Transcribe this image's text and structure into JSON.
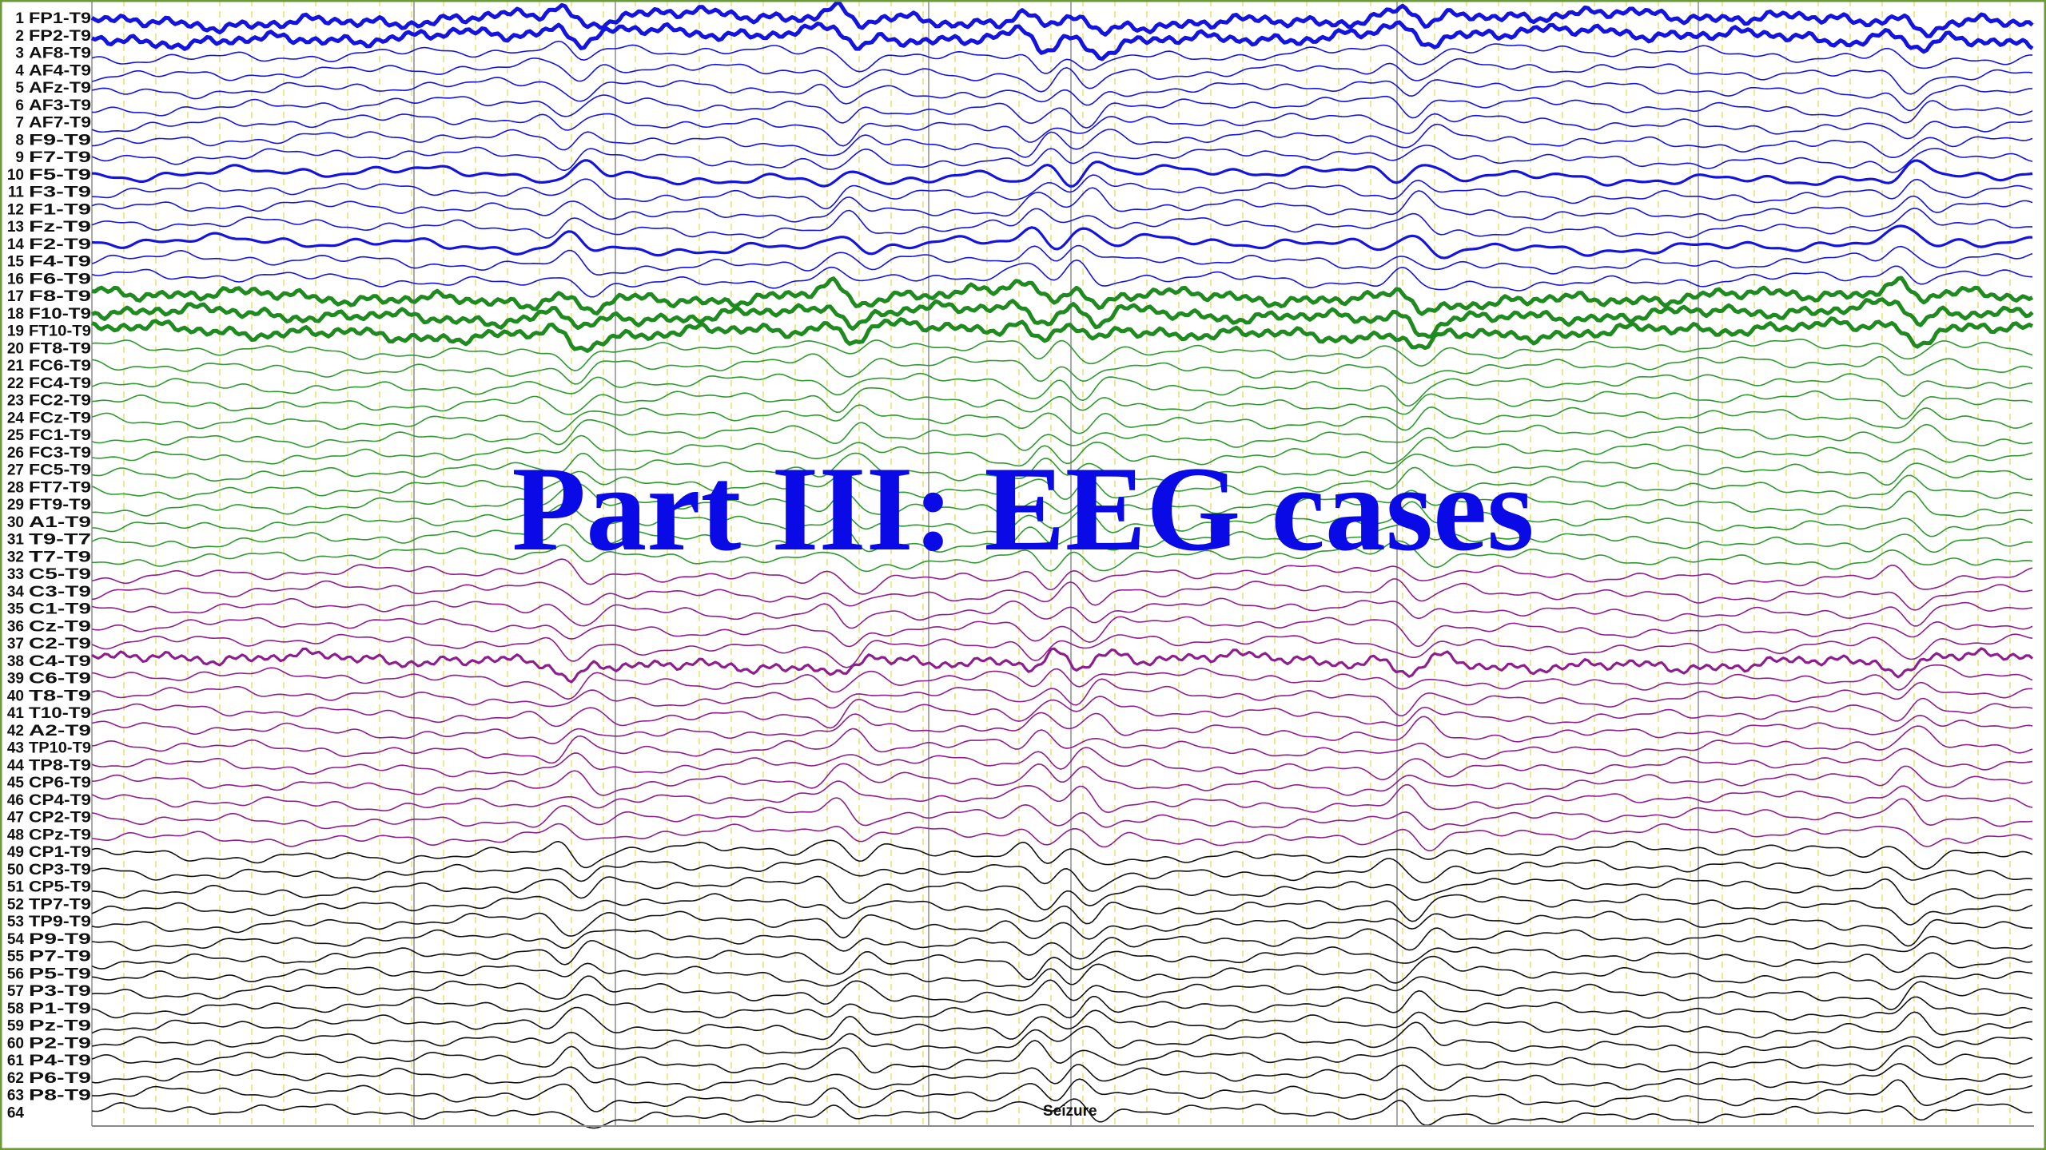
{
  "title": "Part III: EEG cases",
  "channels": [
    {
      "number": "1",
      "label": "FP1-T9"
    },
    {
      "number": "2",
      "label": "FP2-T9"
    },
    {
      "number": "3",
      "label": "AF8-T9"
    },
    {
      "number": "4",
      "label": "AF4-T9"
    },
    {
      "number": "5",
      "label": "AFz-T9"
    },
    {
      "number": "6",
      "label": "AF3-T9"
    },
    {
      "number": "7",
      "label": "AF7-T9"
    },
    {
      "number": "8",
      "label": "F9-T9"
    },
    {
      "number": "9",
      "label": "F7-T9"
    },
    {
      "number": "10",
      "label": "F5-T9"
    },
    {
      "number": "11",
      "label": "F3-T9"
    },
    {
      "number": "12",
      "label": "F1-T9"
    },
    {
      "number": "13",
      "label": "Fz-T9"
    },
    {
      "number": "14",
      "label": "F2-T9"
    },
    {
      "number": "15",
      "label": "F4-T9"
    },
    {
      "number": "16",
      "label": "F6-T9"
    },
    {
      "number": "17",
      "label": "F8-T9"
    },
    {
      "number": "18",
      "label": "F10-T9"
    },
    {
      "number": "19",
      "label": "FT10-T9"
    },
    {
      "number": "20",
      "label": "FT8-T9"
    },
    {
      "number": "21",
      "label": "FC6-T9"
    },
    {
      "number": "22",
      "label": "FC4-T9"
    },
    {
      "number": "23",
      "label": "FC2-T9"
    },
    {
      "number": "24",
      "label": "FCz-T9"
    },
    {
      "number": "25",
      "label": "FC1-T9"
    },
    {
      "number": "26",
      "label": "FC3-T9"
    },
    {
      "number": "27",
      "label": "FC5-T9"
    },
    {
      "number": "28",
      "label": "FT7-T9"
    },
    {
      "number": "29",
      "label": "FT9-T9"
    },
    {
      "number": "30",
      "label": "A1-T9"
    },
    {
      "number": "31",
      "label": "T9-T7"
    },
    {
      "number": "32",
      "label": "T7-T9"
    },
    {
      "number": "33",
      "label": "C5-T9"
    },
    {
      "number": "34",
      "label": "C3-T9"
    },
    {
      "number": "35",
      "label": "C1-T9"
    },
    {
      "number": "36",
      "label": "Cz-T9"
    },
    {
      "number": "37",
      "label": "C2-T9"
    },
    {
      "number": "38",
      "label": "C4-T9"
    },
    {
      "number": "39",
      "label": "C6-T9"
    },
    {
      "number": "40",
      "label": "T8-T9"
    },
    {
      "number": "41",
      "label": "T10-T9"
    },
    {
      "number": "42",
      "label": "A2-T9"
    },
    {
      "number": "43",
      "label": "TP10-T9"
    },
    {
      "number": "44",
      "label": "TP8-T9"
    },
    {
      "number": "45",
      "label": "CP6-T9"
    },
    {
      "number": "46",
      "label": "CP4-T9"
    },
    {
      "number": "47",
      "label": "CP2-T9"
    },
    {
      "number": "48",
      "label": "CPz-T9"
    },
    {
      "number": "49",
      "label": "CP1-T9"
    },
    {
      "number": "50",
      "label": "CP3-T9"
    },
    {
      "number": "51",
      "label": "CP5-T9"
    },
    {
      "number": "52",
      "label": "TP7-T9"
    },
    {
      "number": "53",
      "label": "TP9-T9"
    },
    {
      "number": "54",
      "label": "P9-T9"
    },
    {
      "number": "55",
      "label": "P7-T9"
    },
    {
      "number": "56",
      "label": "P5-T9"
    },
    {
      "number": "57",
      "label": "P3-T9"
    },
    {
      "number": "58",
      "label": "P1-T9"
    },
    {
      "number": "59",
      "label": "Pz-T9"
    },
    {
      "number": "60",
      "label": "P2-T9"
    },
    {
      "number": "61",
      "label": "P4-T9"
    },
    {
      "number": "62",
      "label": "P6-T9"
    },
    {
      "number": "63",
      "label": "P8-T9"
    },
    {
      "number": "64"
    }
  ],
  "annotations": [
    "Seizure"
  ]
}
